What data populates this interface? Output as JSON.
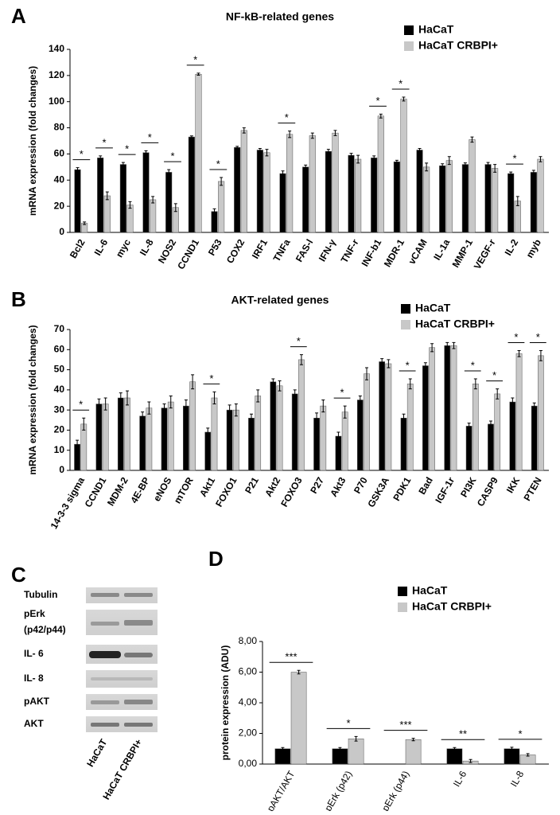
{
  "panel_labels": [
    "A",
    "B",
    "C",
    "D"
  ],
  "chart_data": [
    {
      "type": "bar",
      "title": "NF-kB-related genes",
      "y_label": "mRNA expression (fold changes)",
      "categories": [
        "Bcl2",
        "IL-6",
        "myc",
        "IL-8",
        "NOS2",
        "CCND1",
        "P53",
        "COX2",
        "IRF1",
        "TNFa",
        "FAS-l",
        "IFN-γ",
        "TNF-r",
        "INF-b1",
        "MDR-1",
        "vCAM",
        "IL-1a",
        "MMP-1",
        "VEGF-r",
        "IL-2",
        "myb"
      ],
      "series": [
        {
          "name": "HaCaT",
          "color": "#000000",
          "values": [
            48,
            57,
            52,
            61,
            46,
            73,
            16,
            65,
            63,
            45,
            50,
            62,
            59,
            57,
            54,
            63,
            51,
            52,
            52,
            45,
            46
          ],
          "errors": [
            1.5,
            1.5,
            1.5,
            1.5,
            2,
            0.8,
            2,
            0.8,
            1.2,
            2,
            1.5,
            1.5,
            1.5,
            1.5,
            1.2,
            1.2,
            1.5,
            1.2,
            1.5,
            1.2,
            1.5
          ]
        },
        {
          "name": "HaCaT CRBPI+",
          "color": "#c8c8c8",
          "values": [
            7,
            28,
            21,
            25,
            19,
            121,
            39,
            78,
            61,
            75,
            74,
            76,
            56,
            89,
            102,
            50,
            55,
            71,
            49,
            24,
            56
          ],
          "errors": [
            1,
            3,
            2.5,
            2.5,
            3,
            0.8,
            3,
            2,
            2.5,
            2.5,
            2,
            2,
            3,
            1.5,
            1.5,
            3,
            3,
            2,
            3,
            3.5,
            2
          ]
        }
      ],
      "significance": [
        "*",
        "*",
        "*",
        "*",
        "*",
        "*",
        "*",
        null,
        null,
        "*",
        null,
        null,
        null,
        "*",
        "*",
        null,
        null,
        null,
        null,
        "*",
        null
      ],
      "ylim": [
        0,
        140
      ],
      "yticks": [
        0,
        20,
        40,
        60,
        80,
        100,
        120,
        140
      ],
      "legend": "top-right"
    },
    {
      "type": "bar",
      "title": "AKT-related genes",
      "y_label": "mRNA expression (fold changes)",
      "categories": [
        "14-3-3 sigma",
        "CCND1",
        "MDM-2",
        "4E-BP",
        "eNOS",
        "mTOR",
        "Akt1",
        "FOXO1",
        "P21",
        "Akt2",
        "FOXO3",
        "P27",
        "Akt3",
        "P70",
        "GSK3A",
        "PDK1",
        "Bad",
        "IGF-1r",
        "PI3K",
        "CASP9",
        "IKK",
        "PTEN"
      ],
      "series": [
        {
          "name": "HaCaT",
          "color": "#000000",
          "values": [
            13,
            33,
            36,
            27,
            31,
            32,
            19,
            30,
            26,
            44,
            38,
            26,
            17,
            35,
            54,
            26,
            52,
            62,
            22,
            23,
            34,
            32
          ],
          "errors": [
            2,
            2.5,
            2.5,
            2,
            2,
            3,
            2,
            2.5,
            2,
            1.5,
            2,
            2.5,
            2,
            2,
            1.5,
            2,
            1.5,
            1.5,
            1.5,
            1.5,
            2,
            1.5
          ]
        },
        {
          "name": "HaCaT CRBPI+",
          "color": "#c8c8c8",
          "values": [
            23,
            33,
            36,
            31,
            34,
            44,
            36,
            30,
            37,
            42,
            55,
            32,
            29,
            48,
            53,
            43,
            61,
            62,
            43,
            38,
            58,
            57
          ],
          "errors": [
            3,
            3,
            3.5,
            3,
            3,
            3.5,
            3,
            3,
            3,
            2.5,
            2.5,
            3,
            3,
            3,
            2,
            2.5,
            2,
            1.5,
            2.5,
            2.5,
            1.5,
            2.5
          ]
        }
      ],
      "significance": [
        "*",
        null,
        null,
        null,
        null,
        null,
        "*",
        null,
        null,
        null,
        "*",
        null,
        "*",
        null,
        null,
        "*",
        null,
        null,
        "*",
        "*",
        "*",
        "*"
      ],
      "ylim": [
        0,
        70
      ],
      "yticks": [
        0,
        10,
        20,
        30,
        40,
        50,
        60,
        70
      ],
      "legend": "top-right"
    },
    {
      "type": "bar",
      "y_label": "protein expression (ADU)",
      "categories": [
        "pAKT/AKT",
        "pErk (p42)",
        "pErk (p44)",
        "IL-6",
        "IL-8"
      ],
      "series": [
        {
          "name": "HaCaT",
          "color": "#000000",
          "values": [
            1,
            1,
            null,
            1,
            1
          ],
          "errors": [
            0.08,
            0.08,
            null,
            0.08,
            0.1
          ]
        },
        {
          "name": "HaCaT CRBPI+",
          "color": "#c8c8c8",
          "values": [
            6,
            1.65,
            1.6,
            0.2,
            0.6
          ],
          "errors": [
            0.12,
            0.15,
            0.08,
            0.1,
            0.08
          ]
        }
      ],
      "significance": [
        "***",
        "*",
        "***",
        "**",
        "*"
      ],
      "ylim": [
        0,
        8
      ],
      "yticks": [
        {
          "value": 0,
          "label": "0,00"
        },
        {
          "value": 2,
          "label": "2,00"
        },
        {
          "value": 4,
          "label": "4,00"
        },
        {
          "value": 6,
          "label": "6,00"
        },
        {
          "value": 8,
          "label": "8,00"
        }
      ],
      "legend": "top-right"
    }
  ],
  "blot": {
    "rows": [
      {
        "label": "Tubulin"
      },
      {
        "label": "pErk",
        "sublabel": "(p42/p44)"
      },
      {
        "label": "IL- 6"
      },
      {
        "label": "IL- 8"
      },
      {
        "label": "pAKT"
      },
      {
        "label": "AKT"
      }
    ],
    "lanes": [
      "HaCaT",
      "HaCaT CRBPI+"
    ]
  }
}
